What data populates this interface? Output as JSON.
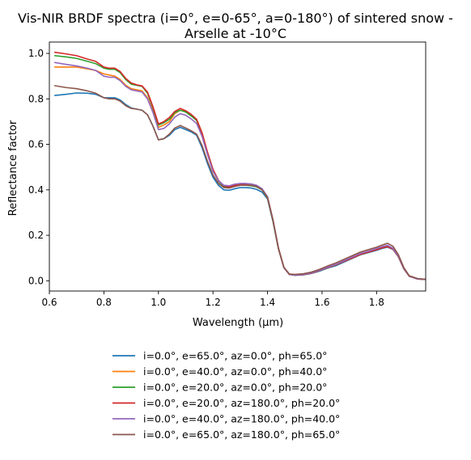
{
  "chart_data": {
    "type": "line",
    "title_lines": [
      "Vis-NIR BRDF spectra (i=0°, e=0-65°, a=0-180°) of sintered snow -",
      "Arselle at -10°C"
    ],
    "xlabel": "Wavelength (μm)",
    "ylabel": "Reflectance factor",
    "xlim": [
      0.6,
      1.98
    ],
    "ylim": [
      -0.045,
      1.05
    ],
    "xticks": [
      0.6,
      0.8,
      1.0,
      1.2,
      1.4,
      1.6,
      1.8
    ],
    "xtick_labels": [
      "0.6",
      "0.8",
      "1.0",
      "1.2",
      "1.4",
      "1.6",
      "1.8"
    ],
    "yticks": [
      0.0,
      0.2,
      0.4,
      0.6,
      0.8,
      1.0
    ],
    "ytick_labels": [
      "0.0",
      "0.2",
      "0.4",
      "0.6",
      "0.8",
      "1.0"
    ],
    "grid": false,
    "legend_position": "below the plot, centered",
    "x": [
      0.62,
      0.66,
      0.7,
      0.74,
      0.77,
      0.8,
      0.82,
      0.84,
      0.86,
      0.88,
      0.9,
      0.92,
      0.94,
      0.96,
      0.98,
      1.0,
      1.02,
      1.04,
      1.06,
      1.08,
      1.1,
      1.12,
      1.14,
      1.16,
      1.18,
      1.2,
      1.22,
      1.24,
      1.26,
      1.28,
      1.3,
      1.32,
      1.34,
      1.36,
      1.38,
      1.4,
      1.42,
      1.44,
      1.46,
      1.48,
      1.5,
      1.53,
      1.56,
      1.59,
      1.62,
      1.65,
      1.68,
      1.71,
      1.74,
      1.77,
      1.8,
      1.82,
      1.84,
      1.86,
      1.88,
      1.9,
      1.92,
      1.95,
      1.98
    ],
    "series": [
      {
        "name": "i=0.0°, e=65.0°, az=0.0°, ph=65.0°",
        "color": "#1f77b4",
        "values": [
          0.815,
          0.82,
          0.826,
          0.825,
          0.82,
          0.805,
          0.805,
          0.805,
          0.795,
          0.775,
          0.76,
          0.755,
          0.75,
          0.73,
          0.68,
          0.62,
          0.625,
          0.64,
          0.665,
          0.675,
          0.665,
          0.655,
          0.64,
          0.585,
          0.515,
          0.455,
          0.42,
          0.4,
          0.398,
          0.405,
          0.41,
          0.41,
          0.408,
          0.402,
          0.39,
          0.36,
          0.26,
          0.14,
          0.058,
          0.028,
          0.024,
          0.026,
          0.032,
          0.042,
          0.056,
          0.066,
          0.082,
          0.098,
          0.114,
          0.124,
          0.134,
          0.142,
          0.148,
          0.138,
          0.105,
          0.052,
          0.02,
          0.008,
          0.006
        ]
      },
      {
        "name": "i=0.0°, e=40.0°, az=0.0°, ph=40.0°",
        "color": "#ff7f0e",
        "values": [
          0.94,
          0.94,
          0.94,
          0.932,
          0.925,
          0.91,
          0.905,
          0.9,
          0.885,
          0.86,
          0.845,
          0.84,
          0.835,
          0.805,
          0.745,
          0.675,
          0.685,
          0.7,
          0.735,
          0.75,
          0.745,
          0.73,
          0.71,
          0.65,
          0.565,
          0.49,
          0.44,
          0.415,
          0.41,
          0.418,
          0.422,
          0.422,
          0.42,
          0.415,
          0.4,
          0.365,
          0.265,
          0.142,
          0.058,
          0.028,
          0.025,
          0.027,
          0.033,
          0.045,
          0.058,
          0.07,
          0.085,
          0.1,
          0.116,
          0.126,
          0.138,
          0.146,
          0.152,
          0.14,
          0.106,
          0.053,
          0.02,
          0.008,
          0.006
        ]
      },
      {
        "name": "i=0.0°, e=20.0°, az=0.0°, ph=20.0°",
        "color": "#2ca02c",
        "values": [
          0.99,
          0.985,
          0.978,
          0.965,
          0.955,
          0.935,
          0.93,
          0.93,
          0.915,
          0.885,
          0.865,
          0.86,
          0.855,
          0.825,
          0.76,
          0.685,
          0.695,
          0.71,
          0.74,
          0.75,
          0.742,
          0.725,
          0.705,
          0.645,
          0.56,
          0.485,
          0.438,
          0.414,
          0.41,
          0.418,
          0.42,
          0.42,
          0.418,
          0.413,
          0.4,
          0.365,
          0.265,
          0.142,
          0.058,
          0.028,
          0.025,
          0.027,
          0.033,
          0.045,
          0.058,
          0.07,
          0.085,
          0.1,
          0.116,
          0.126,
          0.137,
          0.145,
          0.15,
          0.14,
          0.106,
          0.053,
          0.02,
          0.008,
          0.006
        ]
      },
      {
        "name": "i=0.0°, e=20.0°, az=180.0°, ph=20.0°",
        "color": "#d62728",
        "values": [
          1.005,
          0.998,
          0.99,
          0.975,
          0.965,
          0.94,
          0.935,
          0.935,
          0.92,
          0.89,
          0.87,
          0.862,
          0.857,
          0.83,
          0.765,
          0.69,
          0.7,
          0.718,
          0.745,
          0.758,
          0.748,
          0.732,
          0.71,
          0.65,
          0.565,
          0.49,
          0.442,
          0.418,
          0.413,
          0.42,
          0.423,
          0.423,
          0.42,
          0.415,
          0.402,
          0.367,
          0.267,
          0.143,
          0.058,
          0.028,
          0.025,
          0.027,
          0.033,
          0.045,
          0.058,
          0.07,
          0.085,
          0.1,
          0.116,
          0.126,
          0.137,
          0.145,
          0.15,
          0.14,
          0.106,
          0.053,
          0.02,
          0.008,
          0.006
        ]
      },
      {
        "name": "i=0.0°, e=40.0°, az=180.0°, ph=40.0°",
        "color": "#9467bd",
        "values": [
          0.96,
          0.952,
          0.945,
          0.935,
          0.925,
          0.9,
          0.895,
          0.895,
          0.88,
          0.855,
          0.84,
          0.835,
          0.83,
          0.8,
          0.74,
          0.665,
          0.67,
          0.69,
          0.72,
          0.735,
          0.728,
          0.712,
          0.692,
          0.635,
          0.555,
          0.482,
          0.44,
          0.42,
          0.418,
          0.425,
          0.428,
          0.428,
          0.426,
          0.42,
          0.405,
          0.37,
          0.268,
          0.144,
          0.058,
          0.028,
          0.025,
          0.028,
          0.034,
          0.046,
          0.06,
          0.072,
          0.088,
          0.104,
          0.12,
          0.13,
          0.142,
          0.15,
          0.156,
          0.143,
          0.108,
          0.054,
          0.02,
          0.008,
          0.006
        ]
      },
      {
        "name": "i=0.0°, e=65.0°, az=180.0°, ph=65.0°",
        "color": "#8c564b",
        "values": [
          0.858,
          0.85,
          0.845,
          0.835,
          0.825,
          0.805,
          0.8,
          0.8,
          0.79,
          0.77,
          0.758,
          0.755,
          0.75,
          0.73,
          0.68,
          0.62,
          0.625,
          0.645,
          0.672,
          0.683,
          0.672,
          0.66,
          0.645,
          0.595,
          0.525,
          0.465,
          0.428,
          0.41,
          0.408,
          0.415,
          0.42,
          0.42,
          0.42,
          0.415,
          0.4,
          0.367,
          0.268,
          0.145,
          0.06,
          0.03,
          0.028,
          0.031,
          0.038,
          0.05,
          0.065,
          0.078,
          0.094,
          0.11,
          0.126,
          0.137,
          0.148,
          0.157,
          0.165,
          0.152,
          0.115,
          0.058,
          0.022,
          0.01,
          0.007
        ]
      }
    ]
  }
}
